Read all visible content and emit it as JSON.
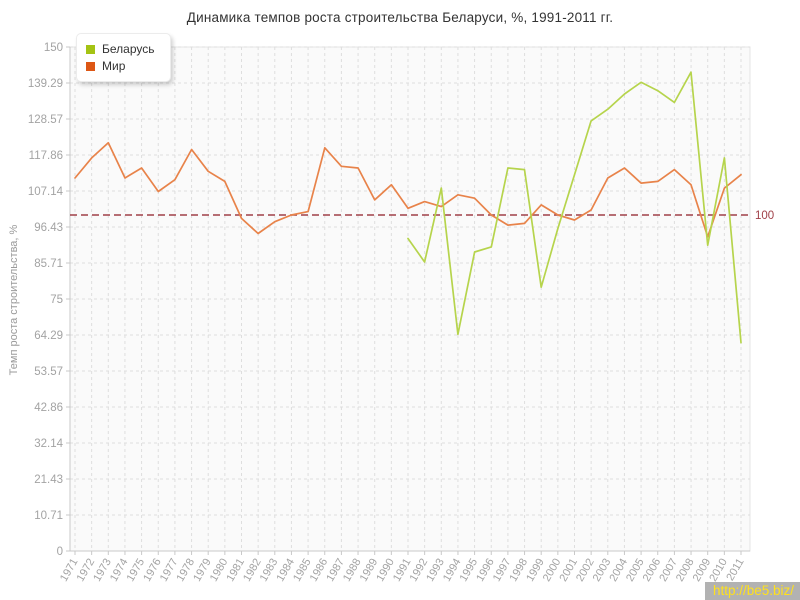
{
  "header": {
    "title": "Динамика темпов роста строительства Беларуси, %, 1991-2011 гг."
  },
  "watermark": {
    "text": "http://be5.biz/"
  },
  "chart_data": {
    "type": "line",
    "title": "Динамика темпов роста строительства Беларуси, %, 1991-2011 гг.",
    "xlabel": "",
    "ylabel": "Темп роста строительства, %",
    "ylim": [
      0,
      150
    ],
    "grid": "dashed",
    "legend_position": "top-left",
    "x_ticks": [
      "1971",
      "1972",
      "1973",
      "1974",
      "1975",
      "1976",
      "1977",
      "1978",
      "1979",
      "1980",
      "1981",
      "1982",
      "1983",
      "1984",
      "1985",
      "1986",
      "1987",
      "1988",
      "1989",
      "1990",
      "1991",
      "1992",
      "1993",
      "1994",
      "1995",
      "1996",
      "1997",
      "1998",
      "1999",
      "2000",
      "2001",
      "2002",
      "2003",
      "2004",
      "2005",
      "2006",
      "2007",
      "2008",
      "2009",
      "2010",
      "2011"
    ],
    "y_ticks": [
      "0",
      "10.71",
      "21.43",
      "32.14",
      "42.86",
      "53.57",
      "64.29",
      "75",
      "85.71",
      "96.43",
      "107.14",
      "117.86",
      "128.57",
      "139.29",
      "150"
    ],
    "x_start_year": 1971,
    "x_end_year": 2011,
    "reference_line": {
      "value": 100,
      "label": "100",
      "color": "#a04048"
    },
    "series": [
      {
        "name": "Беларусь",
        "color": "#a4c314",
        "line_color": "#b6d44c",
        "start_year": 1991,
        "values": [
          93,
          86,
          108,
          64.5,
          89,
          90.5,
          114,
          113.5,
          78.5,
          96,
          112,
          128,
          131.5,
          136,
          139.5,
          137,
          133.5,
          142.5,
          91,
          117,
          62
        ]
      },
      {
        "name": "Мир",
        "color": "#dd5715",
        "line_color": "#e8834a",
        "start_year": 1971,
        "values": [
          111,
          117,
          121.5,
          111,
          114,
          107,
          110.5,
          119.5,
          113,
          110,
          99,
          94.5,
          98,
          100,
          101,
          120,
          114.5,
          114,
          104.5,
          109,
          102,
          104,
          102.5,
          106,
          105,
          100,
          97,
          97.5,
          103,
          100,
          98.5,
          101.5,
          111,
          114,
          109.5,
          110,
          113.5,
          109,
          93.5,
          108,
          112
        ]
      }
    ],
    "colors": {
      "axis": "#c9c9c9",
      "grid": "#dedede",
      "tick_text": "#a3a3a3",
      "plot_bg": "#fafafa"
    }
  }
}
